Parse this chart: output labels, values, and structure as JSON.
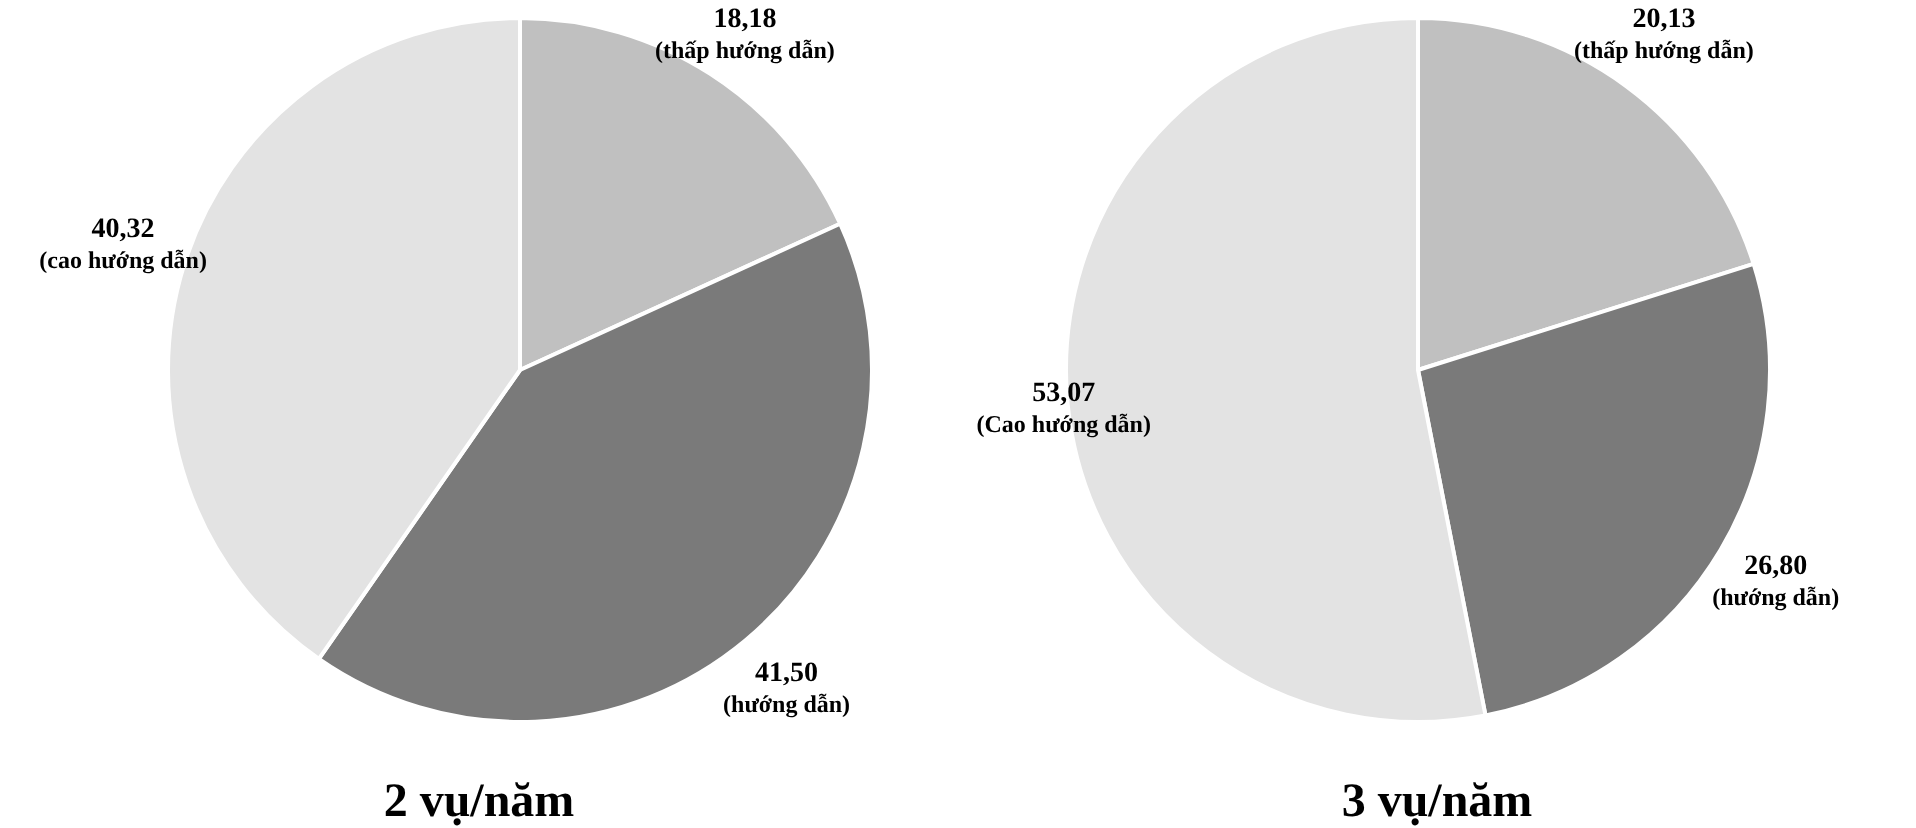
{
  "chart_data": [
    {
      "type": "pie",
      "title": "2 vụ/năm",
      "categories": [
        "(thấp hướng dẫn)",
        "(hướng dẫn)",
        "(cao hướng dẫn)"
      ],
      "values": [
        18.18,
        41.5,
        40.32
      ],
      "value_labels": [
        "18,18",
        "41,50",
        "40,32"
      ],
      "colors": [
        "#c0c0c0",
        "#7a7a7a",
        "#e3e3e3"
      ],
      "legend": false
    },
    {
      "type": "pie",
      "title": "3 vụ/năm",
      "categories": [
        "(thấp hướng dẫn)",
        "(hướng dẫn)",
        "(Cao hướng dẫn)"
      ],
      "values": [
        20.13,
        26.8,
        53.07
      ],
      "value_labels": [
        "20,13",
        "26,80",
        "53,07"
      ],
      "colors": [
        "#c0c0c0",
        "#7a7a7a",
        "#e3e3e3"
      ],
      "legend": false
    }
  ]
}
